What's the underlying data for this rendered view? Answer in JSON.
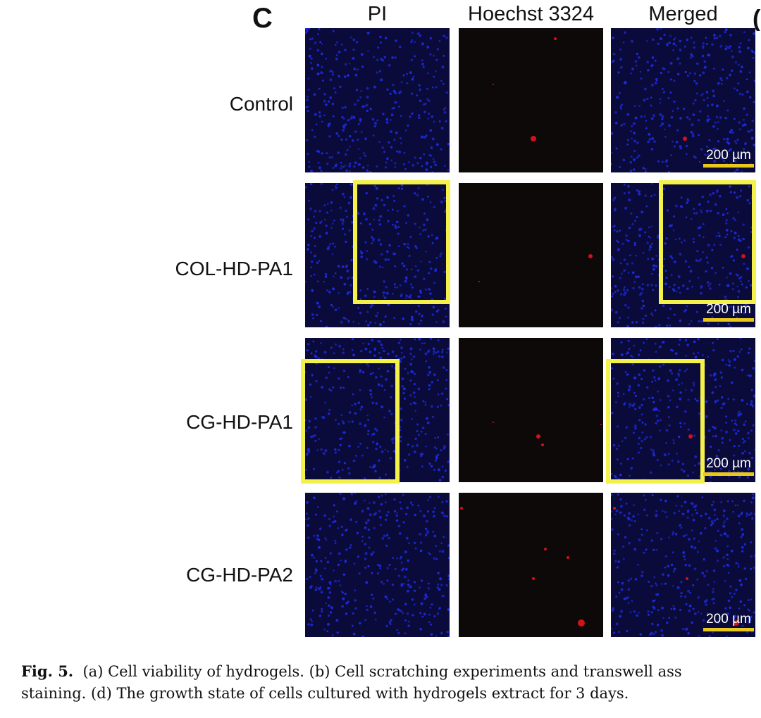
{
  "figure": {
    "panel_letter": "C",
    "next_panel_letter_fragment": "(",
    "columns": [
      {
        "key": "pi",
        "label": "PI"
      },
      {
        "key": "hoechst",
        "label": "Hoechst 3324"
      },
      {
        "key": "merged",
        "label": "Merged"
      }
    ],
    "rows": [
      {
        "label": "Control",
        "scale_bar": "200 µm"
      },
      {
        "label": "COL-HD-PA1",
        "scale_bar": "200 µm"
      },
      {
        "label": "CG-HD-PA1",
        "scale_bar": "200 µm"
      },
      {
        "label": "CG-HD-PA2",
        "scale_bar": "200 µm"
      }
    ],
    "colors": {
      "tile_background_blue": "#0a0b3a",
      "nuclei_blue": "#1d2be0",
      "tile_background_dark": "#0d0909",
      "dead_cell_red": "#d0121a",
      "highlight_yellow": "#f4f24a",
      "scale_bar_yellow": "#e8c81a"
    }
  },
  "caption": {
    "label": "Fig. 5.",
    "line1": "(a) Cell viability of hydrogels. (b) Cell scratching experiments and transwell ass",
    "line2": "staining. (d) The growth state of cells cultured with hydrogels extract for 3 days."
  }
}
